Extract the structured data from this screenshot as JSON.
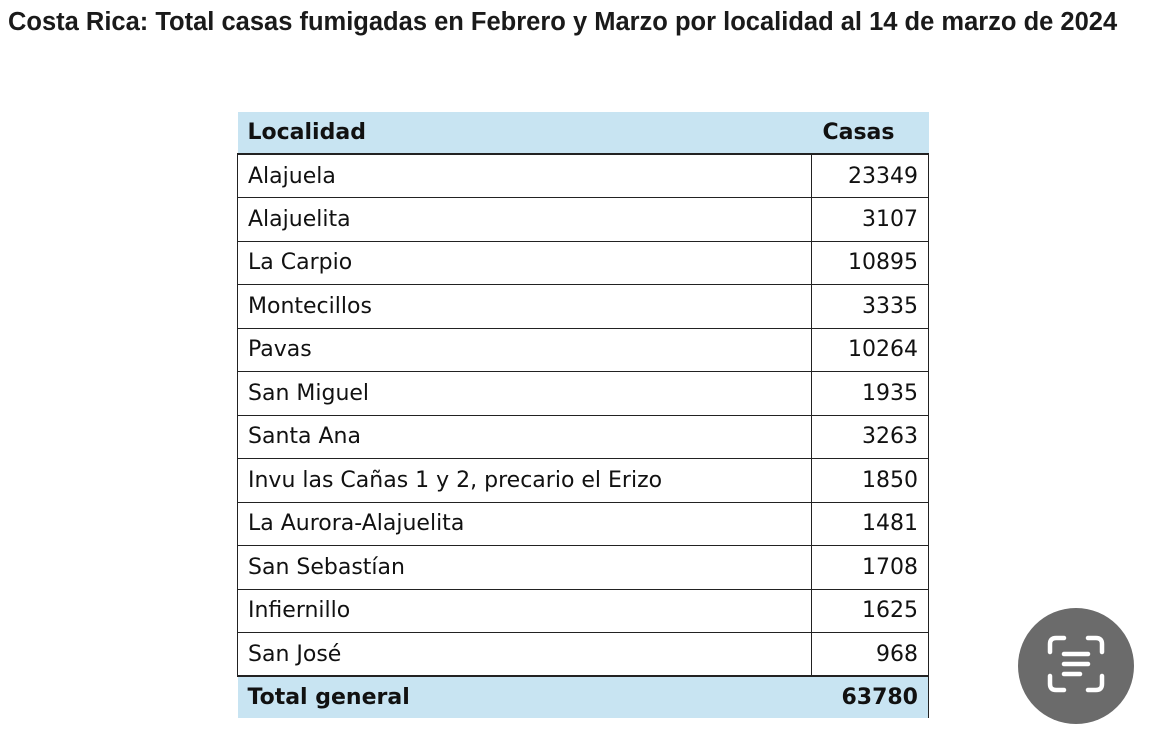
{
  "title": "Costa Rica: Total casas fumigadas en Febrero y Marzo por localidad al 14 de marzo de 2024",
  "table": {
    "headers": {
      "locality": "Localidad",
      "houses": "Casas"
    },
    "rows": [
      {
        "name": "Alajuela",
        "value": "23349"
      },
      {
        "name": "Alajuelita",
        "value": "3107"
      },
      {
        "name": "La Carpio",
        "value": "10895"
      },
      {
        "name": "Montecillos",
        "value": "3335"
      },
      {
        "name": "Pavas",
        "value": "10264"
      },
      {
        "name": "San Miguel",
        "value": "1935"
      },
      {
        "name": "Santa Ana",
        "value": "3263"
      },
      {
        "name": "Invu las Cañas 1 y 2, precario el Erizo",
        "value": "1850"
      },
      {
        "name": "La Aurora-Alajuelita",
        "value": "1481"
      },
      {
        "name": "San Sebastían",
        "value": "1708"
      },
      {
        "name": "Infiernillo",
        "value": "1625"
      },
      {
        "name": "San José",
        "value": "968"
      }
    ],
    "total": {
      "label": "Total general",
      "value": "63780"
    }
  },
  "colors": {
    "header_bg": "#c8e4f2",
    "fab_bg": "#6b6b6b"
  },
  "fab": {
    "icon": "text-scan-icon"
  }
}
